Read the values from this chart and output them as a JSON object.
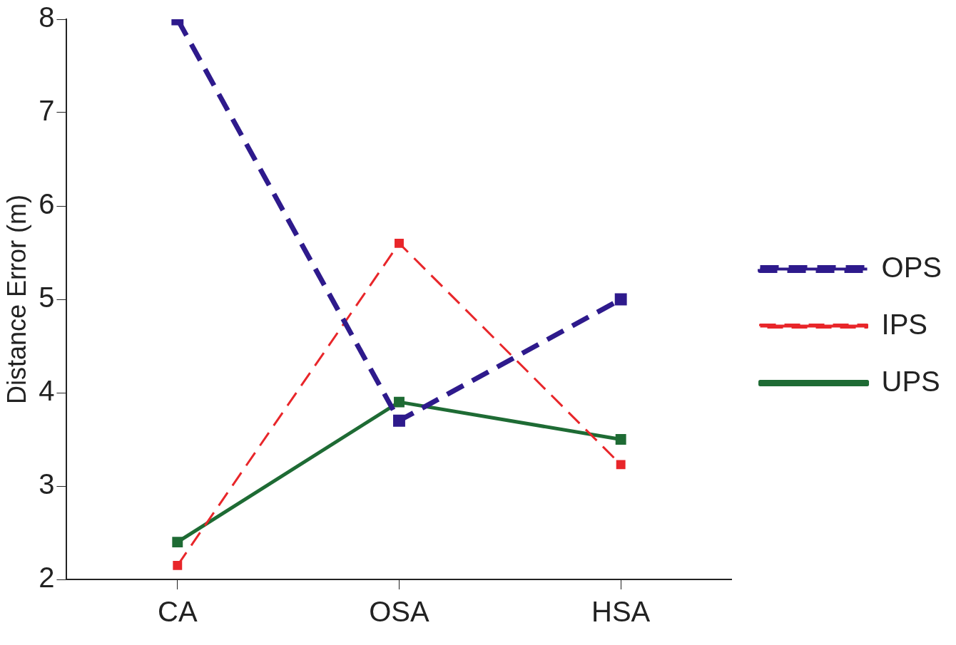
{
  "chart_data": {
    "type": "line",
    "ylabel": "Distance Error (m)",
    "categories": [
      "CA",
      "OSA",
      "HSA"
    ],
    "series": [
      {
        "name": "OPS",
        "color": "#2e1a8c",
        "values": [
          8,
          3.7,
          5.0
        ],
        "line_style": "dashed"
      },
      {
        "name": "IPS",
        "color": "#e8262a",
        "values": [
          2.15,
          5.6,
          3.23
        ],
        "line_style": "dashed"
      },
      {
        "name": "UPS",
        "color": "#1e6b34",
        "values": [
          2.4,
          3.9,
          3.5
        ],
        "line_style": "solid"
      }
    ],
    "ylim": [
      2,
      8
    ],
    "yticks": [
      2,
      3,
      4,
      5,
      6,
      7,
      8
    ],
    "grid": false,
    "legend": "right",
    "marker": "square"
  }
}
